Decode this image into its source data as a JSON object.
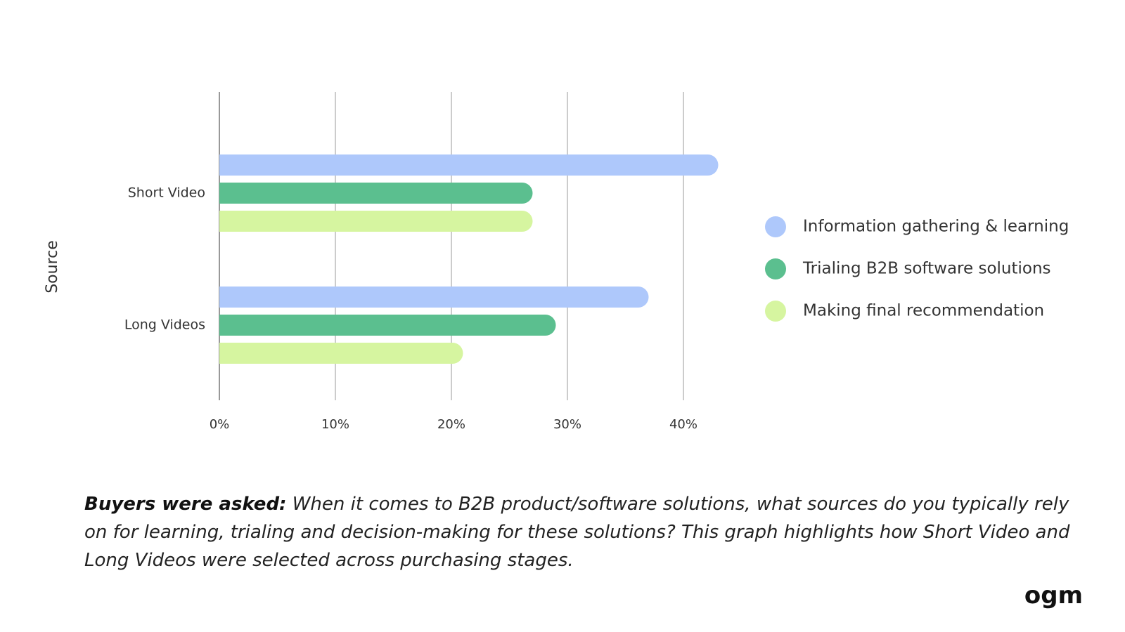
{
  "chart_data": {
    "type": "bar",
    "orientation": "horizontal",
    "y_label": "Source",
    "categories": [
      "Short Video",
      "Long Videos"
    ],
    "series": [
      {
        "name": "Information gathering & learning",
        "color": "#aec8fb",
        "values": [
          43,
          37
        ]
      },
      {
        "name": "Trialing B2B software solutions",
        "color": "#5bbf8f",
        "values": [
          27,
          29
        ]
      },
      {
        "name": "Making final recommendation",
        "color": "#d6f5a0",
        "values": [
          27,
          21
        ]
      }
    ],
    "xlim": [
      0,
      45
    ],
    "xticks": [
      {
        "value": 0,
        "label": "0%"
      },
      {
        "value": 10,
        "label": "10%"
      },
      {
        "value": 20,
        "label": "20%"
      },
      {
        "value": 30,
        "label": "30%"
      },
      {
        "value": 40,
        "label": "40%"
      }
    ],
    "grid": true,
    "legend": "right"
  },
  "caption": {
    "lead": "Buyers were asked:",
    "text": "When it comes to B2B product/software solutions, what sources do you typically rely on for learning, trialing and decision-making for these solutions?  This graph highlights how Short Video and Long Videos were selected across purchasing stages."
  },
  "logo": "ogm"
}
